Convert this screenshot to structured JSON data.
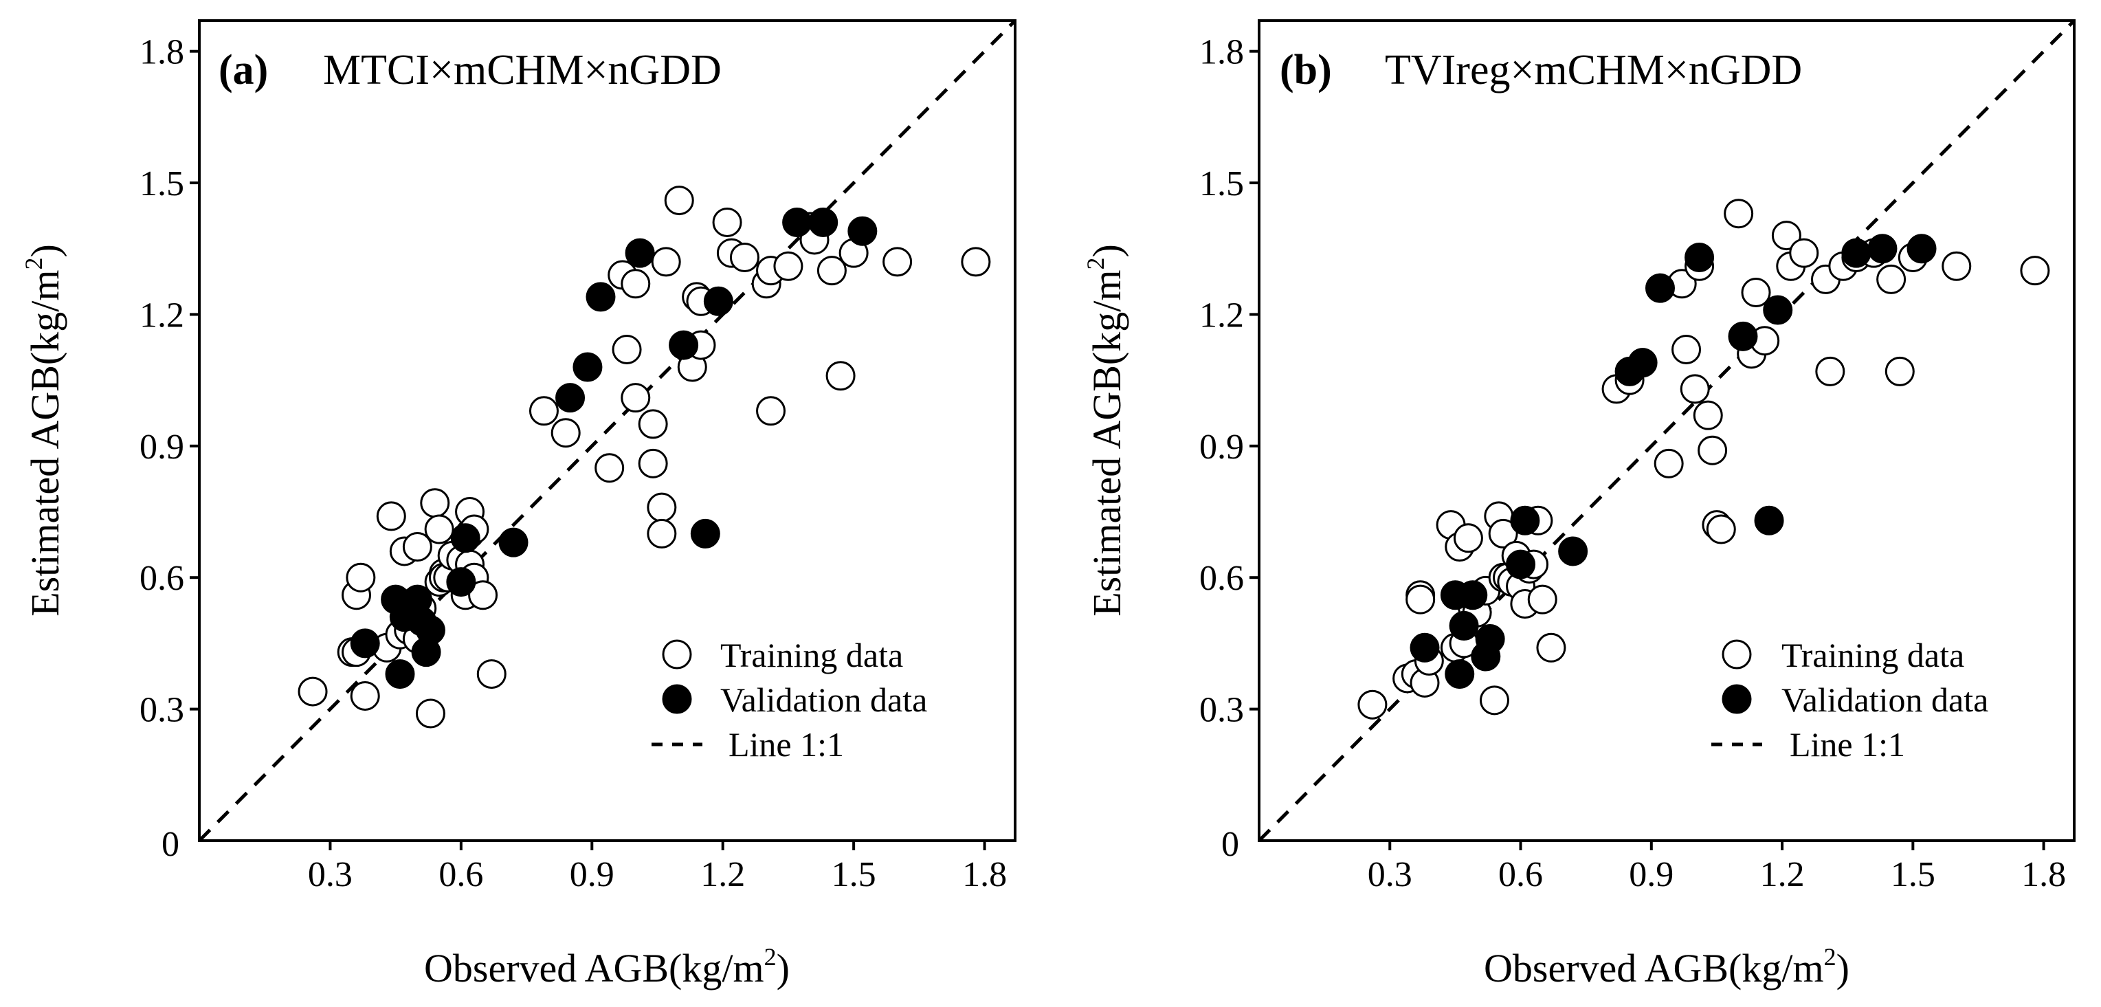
{
  "colors": {
    "axis": "#000000",
    "train_fill": "#ffffff",
    "valid_fill": "#000000",
    "background": "#ffffff"
  },
  "chart_data": [
    {
      "type": "scatter",
      "panel_label": "(a)",
      "title": "MTCI×mCHM×nGDD",
      "xlabel": "Observed AGB(kg/m",
      "xlabel_sup": "2",
      "xlabel_end": ")",
      "ylabel": "Estimated AGB(kg/m",
      "ylabel_sup": "2",
      "ylabel_end": ")",
      "xlim": [
        0,
        1.87
      ],
      "ylim": [
        0,
        1.87
      ],
      "x_ticks": [
        0.3,
        0.6,
        0.9,
        1.2,
        1.5,
        1.8
      ],
      "x_tick_labels": [
        "0.3",
        "0.6",
        "0.9",
        "1.2",
        "1.5",
        "1.8"
      ],
      "y_ticks": [
        0.3,
        0.6,
        0.9,
        1.2,
        1.5,
        1.8
      ],
      "y_tick_labels": [
        "0.3",
        "0.6",
        "0.9",
        "1.2",
        "1.5",
        "1.8"
      ],
      "origin_label": "0",
      "legend": {
        "position": "bottom-right",
        "training": "Training data",
        "validation": "Validation data",
        "line": "Line 1:1"
      },
      "series": [
        {
          "name": "Training data",
          "x": [
            0.26,
            0.35,
            0.36,
            0.36,
            0.37,
            0.38,
            0.43,
            0.44,
            0.46,
            0.47,
            0.48,
            0.48,
            0.49,
            0.5,
            0.5,
            0.51,
            0.53,
            0.54,
            0.55,
            0.55,
            0.56,
            0.56,
            0.57,
            0.58,
            0.6,
            0.61,
            0.62,
            0.62,
            0.62,
            0.63,
            0.63,
            0.65,
            0.67,
            0.79,
            0.84,
            0.94,
            0.97,
            0.98,
            1.0,
            1.0,
            1.04,
            1.04,
            1.06,
            1.06,
            1.07,
            1.1,
            1.13,
            1.14,
            1.15,
            1.15,
            1.21,
            1.22,
            1.25,
            1.3,
            1.31,
            1.31,
            1.35,
            1.4,
            1.41,
            1.45,
            1.47,
            1.5,
            1.6,
            1.78
          ],
          "y": [
            0.34,
            0.43,
            0.43,
            0.56,
            0.6,
            0.33,
            0.44,
            0.74,
            0.47,
            0.66,
            0.48,
            0.54,
            0.52,
            0.46,
            0.67,
            0.53,
            0.29,
            0.77,
            0.71,
            0.59,
            0.61,
            0.6,
            0.6,
            0.65,
            0.64,
            0.56,
            0.63,
            0.7,
            0.75,
            0.71,
            0.6,
            0.56,
            0.38,
            0.98,
            0.93,
            0.85,
            1.29,
            1.12,
            1.01,
            1.27,
            0.95,
            0.86,
            0.76,
            0.7,
            1.32,
            1.46,
            1.08,
            1.24,
            1.13,
            1.23,
            1.41,
            1.34,
            1.33,
            1.27,
            0.98,
            1.3,
            1.31,
            1.4,
            1.37,
            1.3,
            1.06,
            1.34,
            1.32,
            1.32
          ]
        },
        {
          "name": "Validation data",
          "x": [
            0.38,
            0.45,
            0.46,
            0.47,
            0.48,
            0.5,
            0.51,
            0.52,
            0.53,
            0.6,
            0.61,
            0.72,
            0.85,
            0.89,
            0.92,
            1.01,
            1.11,
            1.16,
            1.19,
            1.37,
            1.43,
            1.52
          ],
          "y": [
            0.45,
            0.55,
            0.38,
            0.51,
            0.53,
            0.55,
            0.5,
            0.43,
            0.48,
            0.59,
            0.69,
            0.68,
            1.01,
            1.08,
            1.24,
            1.34,
            1.13,
            0.7,
            1.23,
            1.41,
            1.41,
            1.39
          ]
        }
      ]
    },
    {
      "type": "scatter",
      "panel_label": "(b)",
      "title": "TVIreg×mCHM×nGDD",
      "xlabel": "Observed AGB(kg/m",
      "xlabel_sup": "2",
      "xlabel_end": ")",
      "ylabel": "Estimated AGB(kg/m",
      "ylabel_sup": "2",
      "ylabel_end": ")",
      "xlim": [
        0,
        1.87
      ],
      "ylim": [
        0,
        1.87
      ],
      "x_ticks": [
        0.3,
        0.6,
        0.9,
        1.2,
        1.5,
        1.8
      ],
      "x_tick_labels": [
        "0.3",
        "0.6",
        "0.9",
        "1.2",
        "1.5",
        "1.8"
      ],
      "y_ticks": [
        0.3,
        0.6,
        0.9,
        1.2,
        1.5,
        1.8
      ],
      "y_tick_labels": [
        "0.3",
        "0.6",
        "0.9",
        "1.2",
        "1.5",
        "1.8"
      ],
      "origin_label": "0",
      "legend": {
        "position": "bottom-right",
        "training": "Training data",
        "validation": "Validation data",
        "line": "Line 1:1"
      },
      "series": [
        {
          "name": "Training data",
          "x": [
            0.26,
            0.34,
            0.36,
            0.37,
            0.37,
            0.38,
            0.39,
            0.44,
            0.45,
            0.46,
            0.47,
            0.48,
            0.49,
            0.5,
            0.52,
            0.54,
            0.55,
            0.56,
            0.56,
            0.57,
            0.58,
            0.59,
            0.6,
            0.61,
            0.62,
            0.63,
            0.64,
            0.65,
            0.67,
            0.82,
            0.85,
            0.94,
            0.97,
            0.98,
            1.0,
            1.01,
            1.03,
            1.04,
            1.05,
            1.06,
            1.1,
            1.13,
            1.14,
            1.16,
            1.21,
            1.22,
            1.25,
            1.3,
            1.31,
            1.34,
            1.37,
            1.41,
            1.45,
            1.47,
            1.5,
            1.6,
            1.78
          ],
          "y": [
            0.31,
            0.37,
            0.38,
            0.56,
            0.55,
            0.36,
            0.41,
            0.72,
            0.44,
            0.67,
            0.45,
            0.69,
            0.53,
            0.52,
            0.57,
            0.32,
            0.74,
            0.7,
            0.6,
            0.6,
            0.59,
            0.65,
            0.58,
            0.54,
            0.62,
            0.63,
            0.73,
            0.55,
            0.44,
            1.03,
            1.05,
            0.86,
            1.27,
            1.12,
            1.03,
            1.31,
            0.97,
            0.89,
            0.72,
            0.71,
            1.43,
            1.11,
            1.25,
            1.14,
            1.38,
            1.31,
            1.34,
            1.28,
            1.07,
            1.31,
            1.33,
            1.34,
            1.28,
            1.07,
            1.33,
            1.31,
            1.3
          ]
        },
        {
          "name": "Validation data",
          "x": [
            0.38,
            0.45,
            0.46,
            0.47,
            0.49,
            0.52,
            0.53,
            0.6,
            0.61,
            0.72,
            0.85,
            0.88,
            0.92,
            1.01,
            1.11,
            1.17,
            1.19,
            1.37,
            1.43,
            1.52
          ],
          "y": [
            0.44,
            0.56,
            0.38,
            0.49,
            0.56,
            0.42,
            0.46,
            0.63,
            0.73,
            0.66,
            1.07,
            1.09,
            1.26,
            1.33,
            1.15,
            0.73,
            1.21,
            1.34,
            1.35,
            1.35
          ]
        }
      ]
    }
  ]
}
